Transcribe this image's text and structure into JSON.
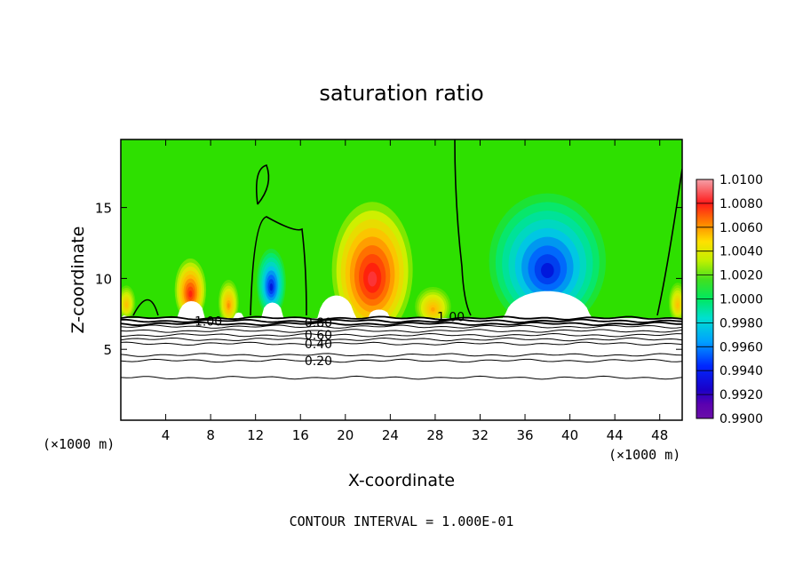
{
  "chart_data": {
    "type": "heatmap",
    "title": "saturation ratio",
    "xlabel": "X-coordinate",
    "ylabel": "Z-coordinate",
    "x_unit_label": "(×1000 m)",
    "x_unit_label_right": "(×1000 m)",
    "footer": "CONTOUR INTERVAL = 1.000E-01",
    "xlim": [
      0,
      50
    ],
    "ylim": [
      0,
      19.8
    ],
    "x_ticks": [
      4,
      8,
      12,
      16,
      20,
      24,
      28,
      32,
      36,
      40,
      44,
      48
    ],
    "y_ticks": [
      5,
      10,
      15
    ],
    "colorbar": {
      "ticks": [
        "1.0100",
        "1.0080",
        "1.0060",
        "1.0040",
        "1.0020",
        "1.0000",
        "0.9980",
        "0.9960",
        "0.9940",
        "0.9920",
        "0.9900"
      ],
      "range": [
        0.99,
        1.01
      ]
    },
    "contour_labels": [
      {
        "text": "1.00",
        "x": 7.8,
        "z": 7.0
      },
      {
        "text": "1.00",
        "x": 29.4,
        "z": 7.3
      },
      {
        "text": "0.80",
        "x": 17.6,
        "z": 6.9
      },
      {
        "text": "0.60",
        "x": 17.6,
        "z": 6.0
      },
      {
        "text": "0.40",
        "x": 17.6,
        "z": 5.4
      },
      {
        "text": "0.20",
        "x": 17.6,
        "z": 4.2
      }
    ],
    "surface_contours_z": [
      7.2,
      7.0,
      6.8,
      6.6,
      6.3,
      6.0,
      5.7,
      5.4,
      4.6,
      4.2,
      3.0
    ],
    "anomaly_blobs": [
      {
        "name": "warm-a",
        "x": 6.2,
        "z": 9.2,
        "sx": 1.4,
        "sz": 2.2,
        "value": 1.0075
      },
      {
        "name": "warm-b",
        "x": 9.6,
        "z": 8.3,
        "sx": 0.9,
        "sz": 1.6,
        "value": 1.005
      },
      {
        "name": "cold-a",
        "x": 13.4,
        "z": 9.7,
        "sx": 1.3,
        "sz": 2.4,
        "value": 0.9925
      },
      {
        "name": "warm-c",
        "x": 22.4,
        "z": 10.6,
        "sx": 3.6,
        "sz": 4.8,
        "value": 1.0085
      },
      {
        "name": "warm-d",
        "x": 27.8,
        "z": 8.0,
        "sx": 1.6,
        "sz": 1.4,
        "value": 1.0045
      },
      {
        "name": "cold-b",
        "x": 38.0,
        "z": 11.2,
        "sx": 5.2,
        "sz": 4.8,
        "value": 0.9925
      },
      {
        "name": "warm-e",
        "x": 0.5,
        "z": 8.3,
        "sx": 0.8,
        "sz": 1.2,
        "value": 1.004
      },
      {
        "name": "warm-f",
        "x": 49.6,
        "z": 8.3,
        "sx": 0.8,
        "sz": 1.4,
        "value": 1.004
      }
    ]
  }
}
